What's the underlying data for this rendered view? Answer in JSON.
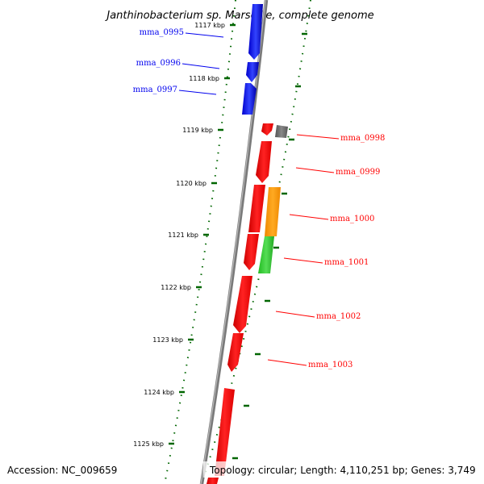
{
  "title": "Janthinobacterium sp. Marseille, complete genome",
  "footer": {
    "accession": "Accession: NC_009659",
    "topology": "Topology: circular; Length: 4,110,251 bp; Genes: 3,749"
  },
  "colors": {
    "forward_strand": "#0000ee",
    "reverse_strand": "#ff0000",
    "other_gene": "#666666",
    "orange_gene": "#ff9900",
    "green_gene": "#33cc33",
    "backbone": "#888888",
    "tick": "#006600"
  },
  "ticks": [
    {
      "label": "1117 kbp"
    },
    {
      "label": "1118 kbp"
    },
    {
      "label": "1119 kbp"
    },
    {
      "label": "1120 kbp"
    },
    {
      "label": "1121 kbp"
    },
    {
      "label": "1122 kbp"
    },
    {
      "label": "1123 kbp"
    },
    {
      "label": "1124 kbp"
    },
    {
      "label": "1125 kbp"
    }
  ],
  "gene_labels": [
    {
      "text": "mma_0995",
      "strand": "forward"
    },
    {
      "text": "mma_0996",
      "strand": "forward"
    },
    {
      "text": "mma_0997",
      "strand": "forward"
    },
    {
      "text": "mma_0998",
      "strand": "reverse"
    },
    {
      "text": "mma_0999",
      "strand": "reverse"
    },
    {
      "text": "mma_1000",
      "strand": "reverse"
    },
    {
      "text": "mma_1001",
      "strand": "reverse"
    },
    {
      "text": "mma_1002",
      "strand": "reverse"
    },
    {
      "text": "mma_1003",
      "strand": "reverse"
    }
  ]
}
